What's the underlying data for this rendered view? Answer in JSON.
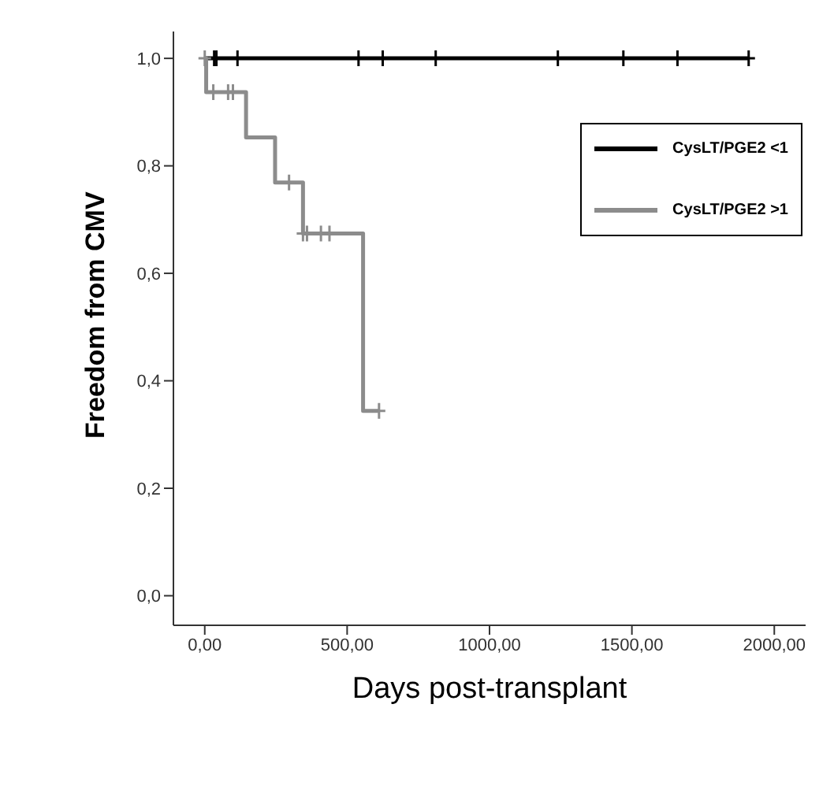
{
  "chart_data": {
    "type": "step",
    "xlabel": "Days post-transplant",
    "ylabel": "Freedom from CMV",
    "xlim": [
      -110,
      2110
    ],
    "ylim": [
      -0.055,
      1.05
    ],
    "xticks": [
      {
        "value": 0,
        "label": "0,00"
      },
      {
        "value": 500,
        "label": "500,00"
      },
      {
        "value": 1000,
        "label": "1000,00"
      },
      {
        "value": 1500,
        "label": "1500,00"
      },
      {
        "value": 2000,
        "label": "2000,00"
      }
    ],
    "yticks": [
      {
        "value": 0,
        "label": "0,0"
      },
      {
        "value": 0.2,
        "label": "0,2"
      },
      {
        "value": 0.4,
        "label": "0,4"
      },
      {
        "value": 0.6,
        "label": "0,6"
      },
      {
        "value": 0.8,
        "label": "0,8"
      },
      {
        "value": 1,
        "label": "1,0"
      }
    ],
    "grid": false,
    "legend": "top right",
    "marker": "none",
    "line_style": "solid",
    "series": [
      {
        "name": "CysLT/PGE2 <1",
        "color": "#000000",
        "x": [
          0,
          1910
        ],
        "values": [
          1,
          1
        ]
      },
      {
        "name": "CysLT/PGE2 >1",
        "color": "#8c8c8c",
        "x": [
          0,
          5,
          145,
          247,
          345,
          556,
          612
        ],
        "values": [
          1,
          0.937,
          0.853,
          0.769,
          0.674,
          0.344,
          0.344
        ]
      },
      {
        "type": "scatter",
        "marker": "cross",
        "color": "#000000",
        "x": [
          33,
          41,
          115,
          540,
          625,
          811,
          1240,
          1470,
          1660,
          1910
        ],
        "values": [
          1,
          1,
          1,
          1,
          1,
          1,
          1,
          1,
          1,
          1
        ]
      },
      {
        "type": "scatter",
        "marker": "cross",
        "color": "#8c8c8c",
        "x": [
          0,
          30,
          82,
          99,
          296,
          345,
          359,
          408,
          438,
          612
        ],
        "values": [
          1,
          0.937,
          0.937,
          0.937,
          0.769,
          0.674,
          0.674,
          0.674,
          0.674,
          0.344
        ]
      }
    ]
  }
}
